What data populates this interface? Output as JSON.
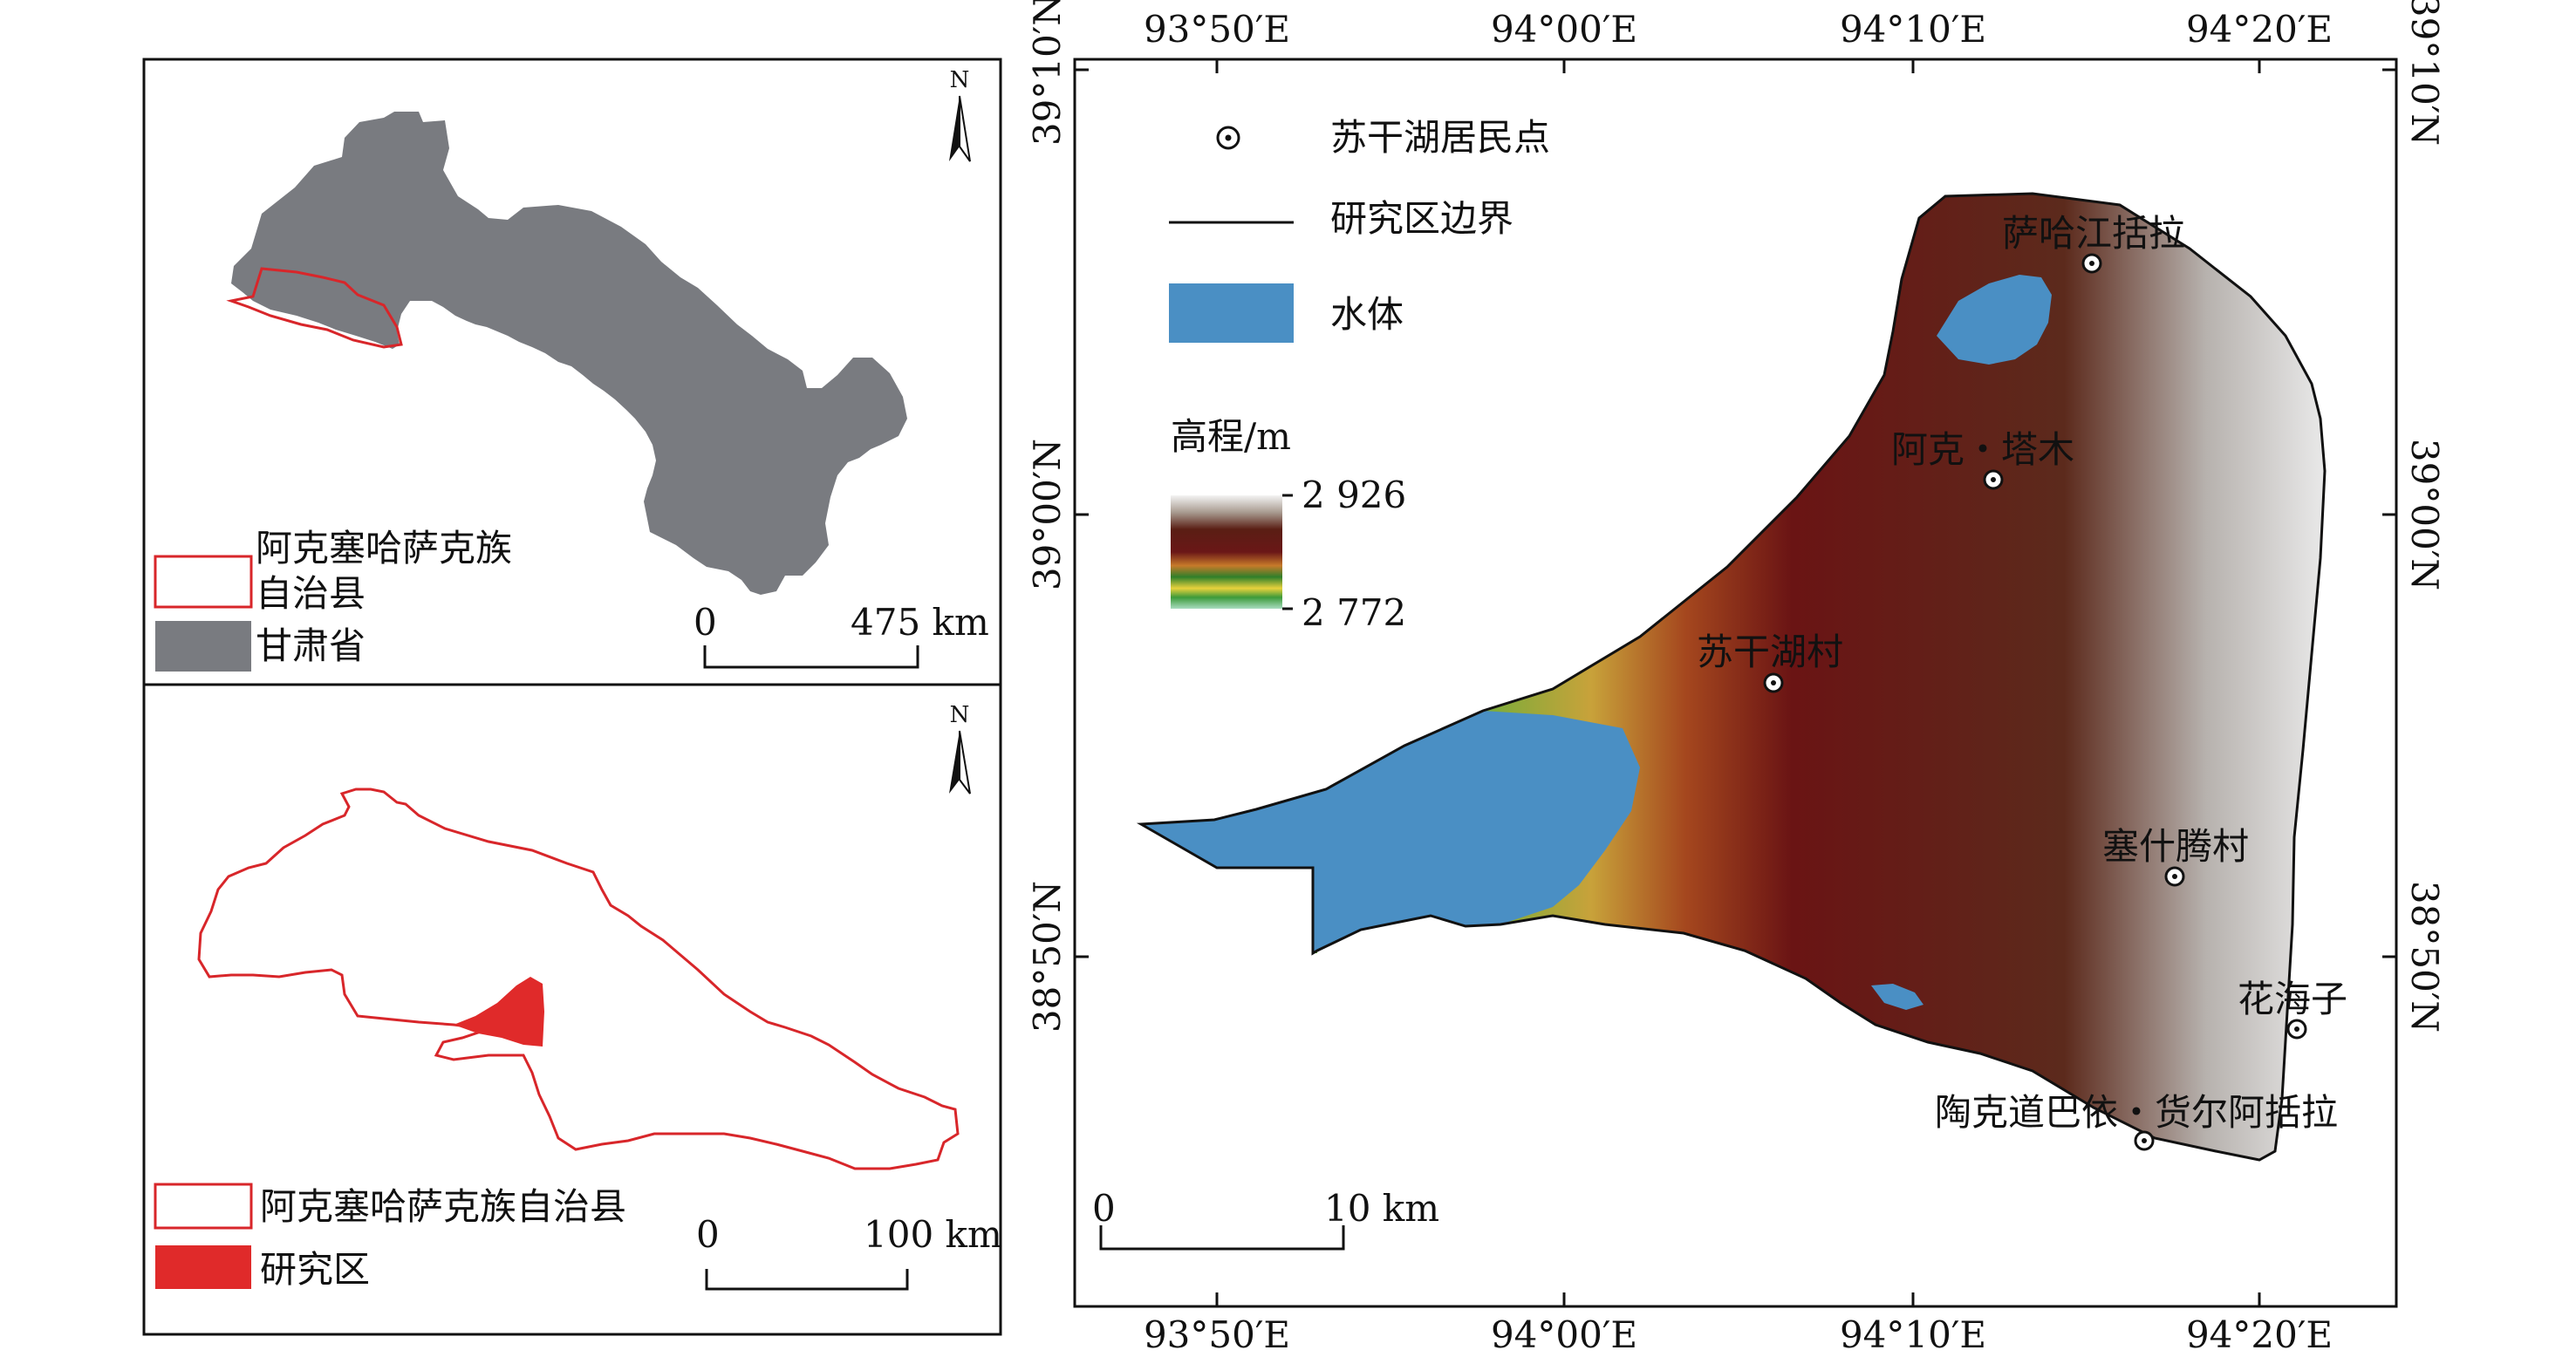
{
  "inset_top": {
    "legend": [
      {
        "label": "阿克塞哈萨克族",
        "label2": "自治县"
      },
      {
        "label": "甘肃省"
      }
    ],
    "north": "N",
    "scale": {
      "start": "0",
      "end": "475 km"
    }
  },
  "inset_bottom": {
    "legend": [
      {
        "label": "阿克塞哈萨克族自治县"
      },
      {
        "label": "研究区"
      }
    ],
    "north": "N",
    "scale": {
      "start": "0",
      "end": "100 km"
    }
  },
  "main_map": {
    "lon_ticks": [
      "93°50′E",
      "94°00′E",
      "94°10′E",
      "94°20′E"
    ],
    "lat_ticks": [
      "39°10′N",
      "39°00′N",
      "38°50′N"
    ],
    "legend": {
      "settlement": "苏干湖居民点",
      "boundary": "研究区边界",
      "water": "水体",
      "elevation_title": "高程/m",
      "elev_max": "2 926",
      "elev_min": "2 772"
    },
    "places": [
      "萨哈江括拉",
      "阿克・塔木",
      "苏干湖村",
      "塞什腾村",
      "花海子",
      "陶克道巴依・货尔阿括拉"
    ],
    "scale": {
      "start": "0",
      "end": "10 km"
    }
  },
  "colors": {
    "province_fill": "#797b80",
    "county_outline": "#d8262a",
    "study_fill": "#e02a2a",
    "water": "#4a8fc4"
  }
}
